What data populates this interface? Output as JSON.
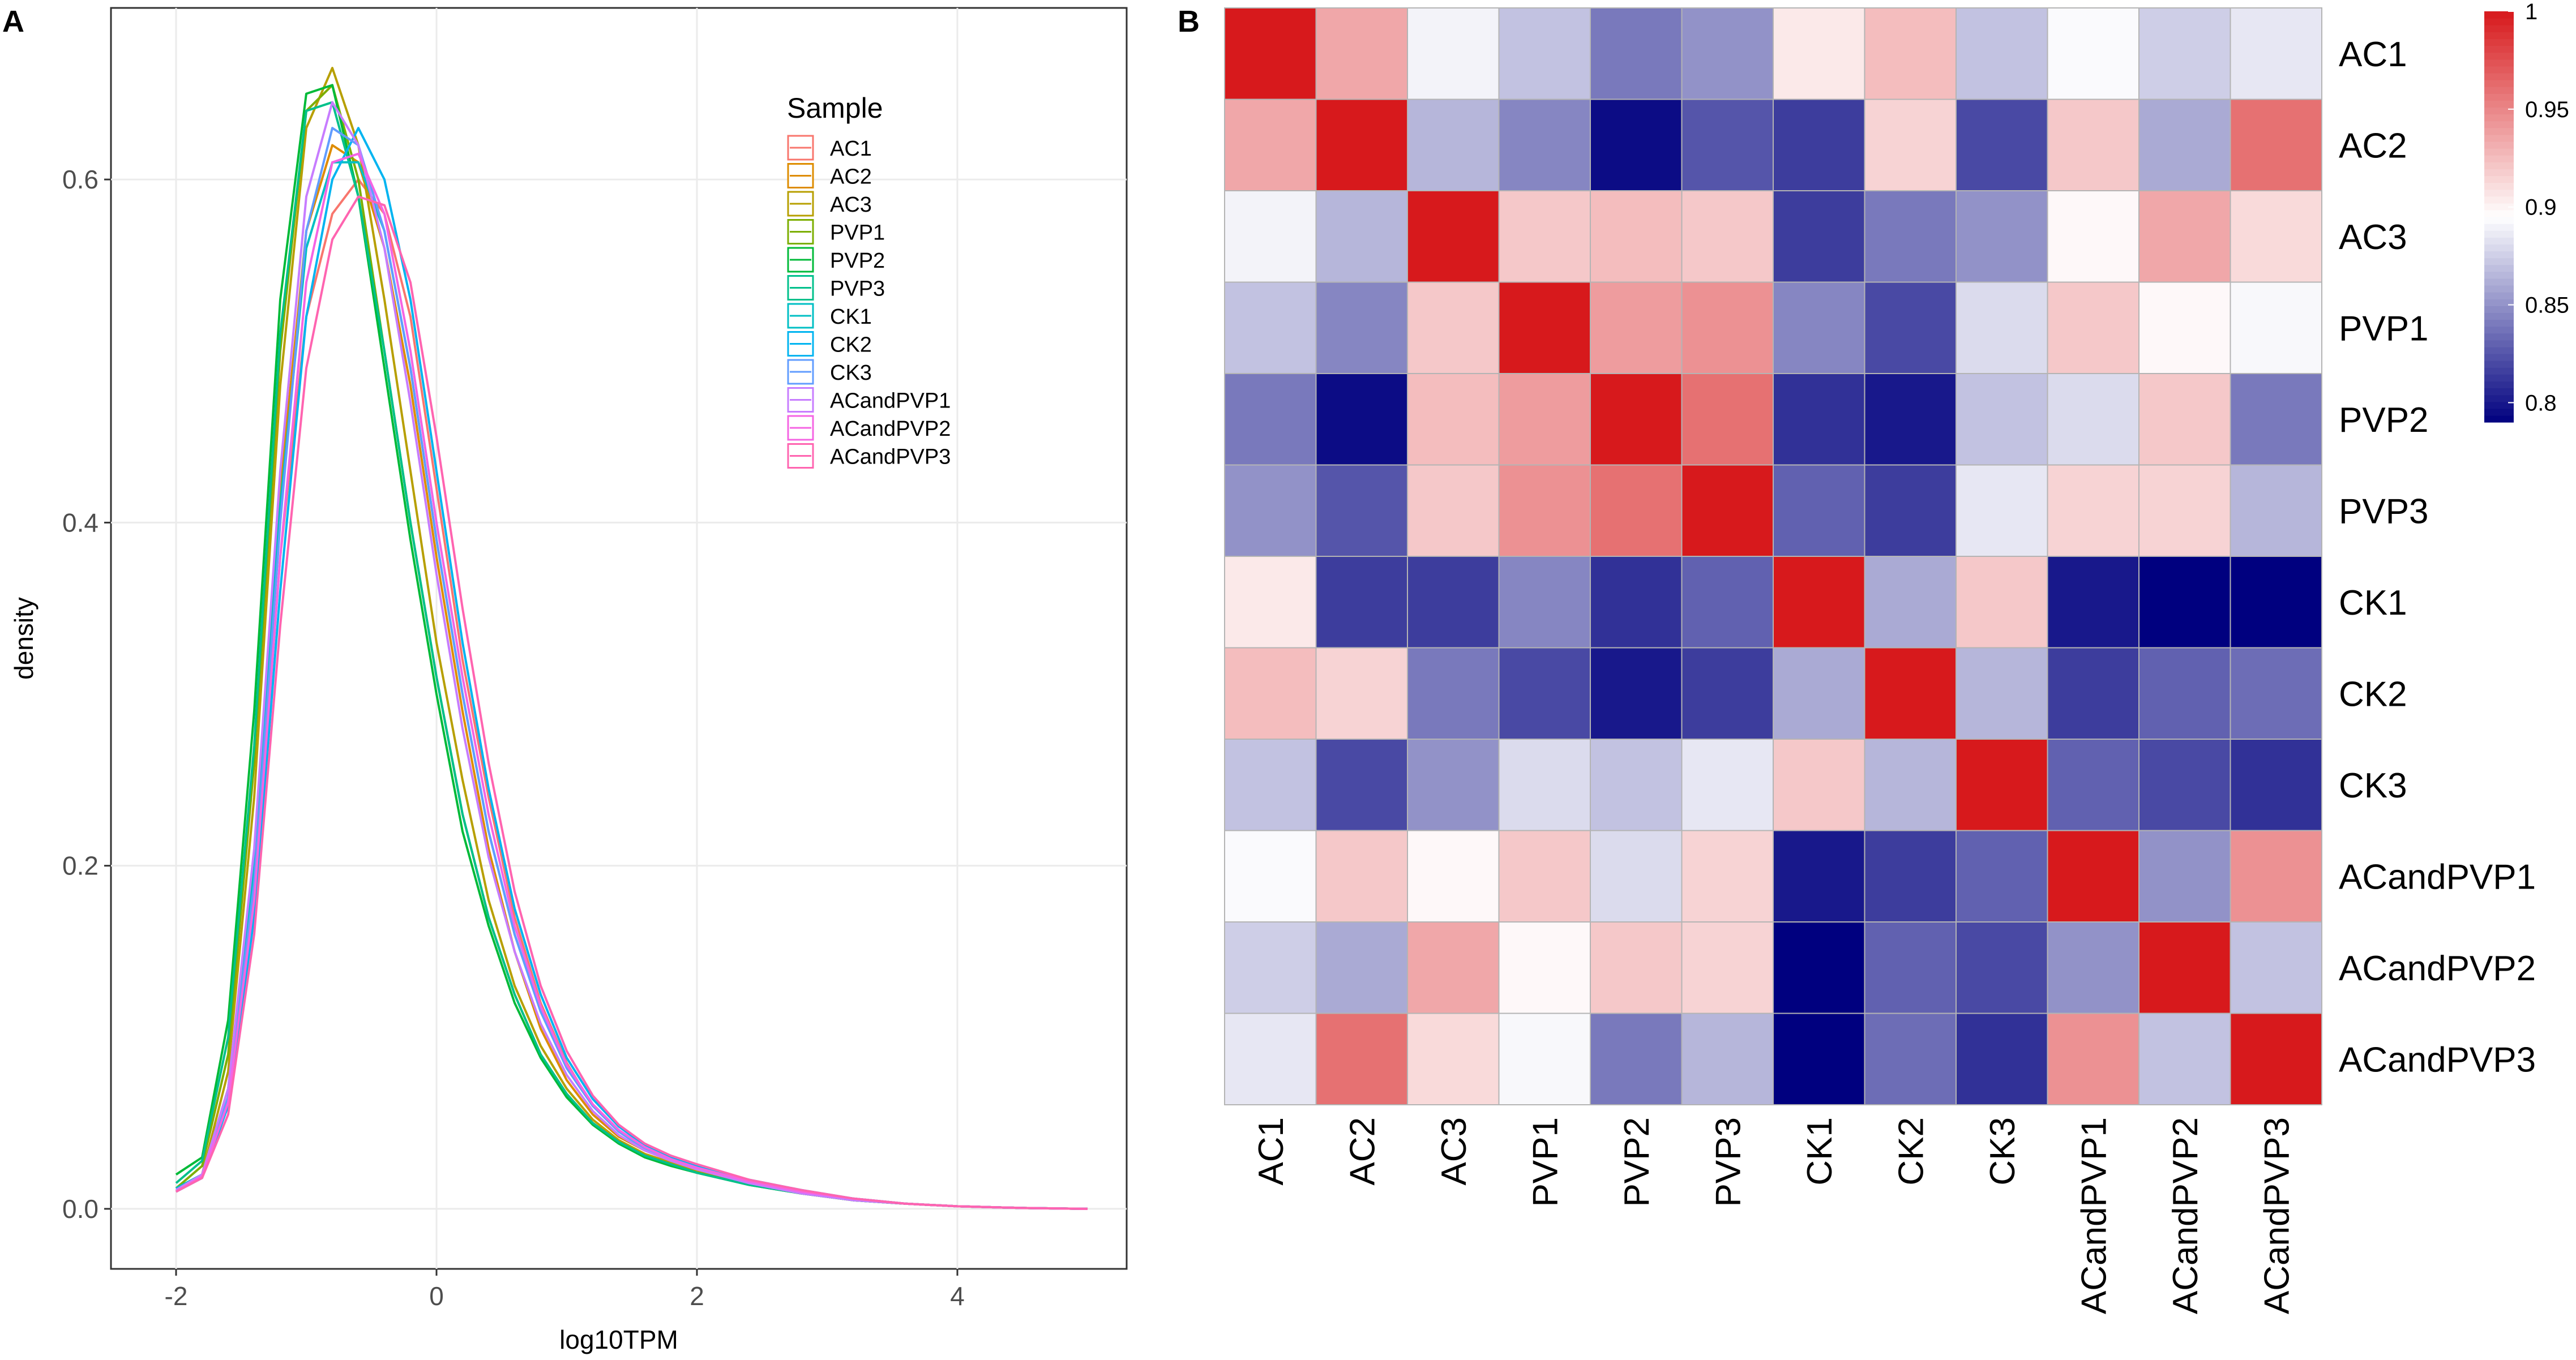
{
  "panel_labels": {
    "a": "A",
    "b": "B"
  },
  "chart_data": [
    {
      "type": "line",
      "panel": "A",
      "title": "",
      "xlabel": "log10TPM",
      "ylabel": "density",
      "xlim": [
        -2.5,
        5.3
      ],
      "ylim": [
        -0.035,
        0.7
      ],
      "xticks": [
        -2,
        0,
        2,
        4
      ],
      "xtick_labels": [
        "-2",
        "0",
        "2",
        "4"
      ],
      "yticks": [
        0.0,
        0.2,
        0.4,
        0.6
      ],
      "ytick_labels": [
        "0.0",
        "0.2",
        "0.4",
        "0.6"
      ],
      "grid": true,
      "legend": {
        "title": "Sample",
        "placement": "top-right"
      },
      "x": [
        -2.0,
        -1.8,
        -1.6,
        -1.4,
        -1.2,
        -1.0,
        -0.8,
        -0.6,
        -0.4,
        -0.2,
        0.0,
        0.2,
        0.4,
        0.6,
        0.8,
        1.0,
        1.2,
        1.4,
        1.6,
        1.8,
        2.0,
        2.4,
        2.8,
        3.2,
        3.6,
        4.0,
        4.5,
        5.0
      ],
      "series": [
        {
          "name": "AC1",
          "color": "#F8766D",
          "values": [
            0.01,
            0.02,
            0.06,
            0.18,
            0.38,
            0.52,
            0.58,
            0.6,
            0.58,
            0.52,
            0.42,
            0.32,
            0.24,
            0.17,
            0.12,
            0.085,
            0.06,
            0.045,
            0.035,
            0.028,
            0.024,
            0.016,
            0.01,
            0.006,
            0.003,
            0.0015,
            0.0005,
            0.0
          ]
        },
        {
          "name": "AC2",
          "color": "#DE8C00",
          "values": [
            0.01,
            0.02,
            0.07,
            0.2,
            0.42,
            0.57,
            0.62,
            0.61,
            0.56,
            0.48,
            0.38,
            0.29,
            0.21,
            0.15,
            0.105,
            0.075,
            0.055,
            0.042,
            0.034,
            0.028,
            0.023,
            0.015,
            0.009,
            0.005,
            0.003,
            0.0015,
            0.0005,
            0.0
          ]
        },
        {
          "name": "AC3",
          "color": "#B79F00",
          "values": [
            0.01,
            0.02,
            0.08,
            0.24,
            0.48,
            0.63,
            0.665,
            0.62,
            0.53,
            0.43,
            0.33,
            0.25,
            0.18,
            0.13,
            0.095,
            0.07,
            0.052,
            0.04,
            0.032,
            0.027,
            0.022,
            0.014,
            0.009,
            0.005,
            0.003,
            0.0015,
            0.0005,
            0.0
          ]
        },
        {
          "name": "PVP1",
          "color": "#7CAE00",
          "values": [
            0.012,
            0.025,
            0.09,
            0.26,
            0.5,
            0.64,
            0.655,
            0.6,
            0.5,
            0.4,
            0.31,
            0.23,
            0.17,
            0.125,
            0.09,
            0.067,
            0.05,
            0.039,
            0.031,
            0.026,
            0.021,
            0.014,
            0.009,
            0.005,
            0.003,
            0.0015,
            0.0005,
            0.0
          ]
        },
        {
          "name": "PVP2",
          "color": "#00BA38",
          "values": [
            0.02,
            0.03,
            0.11,
            0.29,
            0.53,
            0.65,
            0.655,
            0.59,
            0.49,
            0.39,
            0.3,
            0.22,
            0.165,
            0.12,
            0.088,
            0.065,
            0.049,
            0.038,
            0.03,
            0.025,
            0.021,
            0.014,
            0.009,
            0.005,
            0.003,
            0.0015,
            0.0005,
            0.0
          ]
        },
        {
          "name": "PVP3",
          "color": "#00C08B",
          "values": [
            0.015,
            0.028,
            0.1,
            0.27,
            0.51,
            0.64,
            0.645,
            0.59,
            0.5,
            0.4,
            0.31,
            0.23,
            0.17,
            0.125,
            0.09,
            0.067,
            0.05,
            0.039,
            0.031,
            0.026,
            0.021,
            0.014,
            0.009,
            0.005,
            0.003,
            0.0015,
            0.0005,
            0.0
          ]
        },
        {
          "name": "CK1",
          "color": "#00BFC4",
          "values": [
            0.012,
            0.02,
            0.07,
            0.2,
            0.41,
            0.56,
            0.61,
            0.61,
            0.57,
            0.49,
            0.39,
            0.3,
            0.22,
            0.16,
            0.115,
            0.082,
            0.06,
            0.045,
            0.035,
            0.029,
            0.024,
            0.016,
            0.01,
            0.006,
            0.003,
            0.0015,
            0.0005,
            0.0
          ]
        },
        {
          "name": "CK2",
          "color": "#00B4F0",
          "values": [
            0.01,
            0.018,
            0.06,
            0.17,
            0.36,
            0.52,
            0.6,
            0.63,
            0.6,
            0.53,
            0.43,
            0.33,
            0.245,
            0.175,
            0.125,
            0.088,
            0.064,
            0.048,
            0.037,
            0.03,
            0.025,
            0.017,
            0.011,
            0.006,
            0.003,
            0.0015,
            0.0005,
            0.0
          ]
        },
        {
          "name": "CK3",
          "color": "#619CFF",
          "values": [
            0.01,
            0.019,
            0.065,
            0.19,
            0.4,
            0.57,
            0.63,
            0.62,
            0.57,
            0.49,
            0.39,
            0.3,
            0.22,
            0.16,
            0.115,
            0.082,
            0.06,
            0.045,
            0.035,
            0.029,
            0.024,
            0.016,
            0.01,
            0.006,
            0.003,
            0.0015,
            0.0005,
            0.0
          ]
        },
        {
          "name": "ACandPVP1",
          "color": "#C77CFF",
          "values": [
            0.011,
            0.02,
            0.07,
            0.21,
            0.43,
            0.59,
            0.645,
            0.62,
            0.56,
            0.47,
            0.37,
            0.28,
            0.205,
            0.15,
            0.108,
            0.078,
            0.057,
            0.043,
            0.034,
            0.028,
            0.023,
            0.015,
            0.009,
            0.005,
            0.003,
            0.0015,
            0.0005,
            0.0
          ]
        },
        {
          "name": "ACandPVP2",
          "color": "#F564E3",
          "values": [
            0.01,
            0.019,
            0.062,
            0.18,
            0.38,
            0.54,
            0.61,
            0.615,
            0.58,
            0.5,
            0.4,
            0.31,
            0.23,
            0.165,
            0.118,
            0.084,
            0.061,
            0.046,
            0.036,
            0.029,
            0.024,
            0.016,
            0.01,
            0.006,
            0.003,
            0.0015,
            0.0005,
            0.0
          ]
        },
        {
          "name": "ACandPVP3",
          "color": "#FF64B0",
          "values": [
            0.01,
            0.018,
            0.055,
            0.16,
            0.34,
            0.49,
            0.565,
            0.59,
            0.585,
            0.54,
            0.45,
            0.35,
            0.26,
            0.185,
            0.13,
            0.092,
            0.066,
            0.049,
            0.038,
            0.031,
            0.026,
            0.017,
            0.011,
            0.006,
            0.003,
            0.0015,
            0.0005,
            0.0
          ]
        }
      ]
    },
    {
      "type": "heatmap",
      "panel": "B",
      "title": "",
      "row_labels": [
        "AC1",
        "AC2",
        "AC3",
        "PVP1",
        "PVP2",
        "PVP3",
        "CK1",
        "CK2",
        "CK3",
        "ACandPVP1",
        "ACandPVP2",
        "ACandPVP3"
      ],
      "col_labels": [
        "AC1",
        "AC2",
        "AC3",
        "PVP1",
        "PVP2",
        "PVP3",
        "CK1",
        "CK2",
        "CK3",
        "ACandPVP1",
        "ACandPVP2",
        "ACandPVP3"
      ],
      "color_range": [
        0.79,
        1.0
      ],
      "colorbar": {
        "ticks": [
          0.8,
          0.85,
          0.9,
          0.95,
          1.0
        ],
        "tick_labels": [
          "0.8",
          "0.85",
          "0.9",
          "0.95",
          "1"
        ],
        "low_color": "#00007F",
        "mid_color": "#FFFFFF",
        "high_color": "#D7191C",
        "midpoint": 0.895,
        "placement": "right"
      },
      "values": [
        [
          1.0,
          0.935,
          0.89,
          0.87,
          0.84,
          0.85,
          0.905,
          0.925,
          0.87,
          0.893,
          0.875,
          0.885
        ],
        [
          0.935,
          1.0,
          0.865,
          0.845,
          0.795,
          0.825,
          0.815,
          0.915,
          0.82,
          0.92,
          0.86,
          0.96
        ],
        [
          0.89,
          0.865,
          1.0,
          0.92,
          0.925,
          0.92,
          0.815,
          0.84,
          0.85,
          0.898,
          0.935,
          0.912
        ],
        [
          0.87,
          0.845,
          0.92,
          1.0,
          0.94,
          0.945,
          0.845,
          0.82,
          0.88,
          0.92,
          0.898,
          0.892
        ],
        [
          0.84,
          0.795,
          0.925,
          0.94,
          1.0,
          0.96,
          0.81,
          0.8,
          0.87,
          0.88,
          0.92,
          0.84
        ],
        [
          0.85,
          0.825,
          0.92,
          0.945,
          0.96,
          1.0,
          0.83,
          0.815,
          0.885,
          0.915,
          0.915,
          0.865
        ],
        [
          0.905,
          0.815,
          0.815,
          0.845,
          0.81,
          0.83,
          1.0,
          0.86,
          0.92,
          0.8,
          0.785,
          0.785
        ],
        [
          0.925,
          0.915,
          0.84,
          0.82,
          0.8,
          0.815,
          0.86,
          1.0,
          0.865,
          0.815,
          0.83,
          0.835
        ],
        [
          0.87,
          0.82,
          0.85,
          0.88,
          0.87,
          0.885,
          0.92,
          0.865,
          1.0,
          0.83,
          0.82,
          0.81
        ],
        [
          0.893,
          0.92,
          0.898,
          0.92,
          0.88,
          0.915,
          0.8,
          0.815,
          0.83,
          1.0,
          0.85,
          0.945
        ],
        [
          0.875,
          0.86,
          0.935,
          0.898,
          0.92,
          0.915,
          0.785,
          0.83,
          0.82,
          0.85,
          1.0,
          0.87
        ],
        [
          0.885,
          0.96,
          0.912,
          0.892,
          0.84,
          0.865,
          0.785,
          0.835,
          0.81,
          0.945,
          0.87,
          1.0
        ]
      ]
    }
  ]
}
